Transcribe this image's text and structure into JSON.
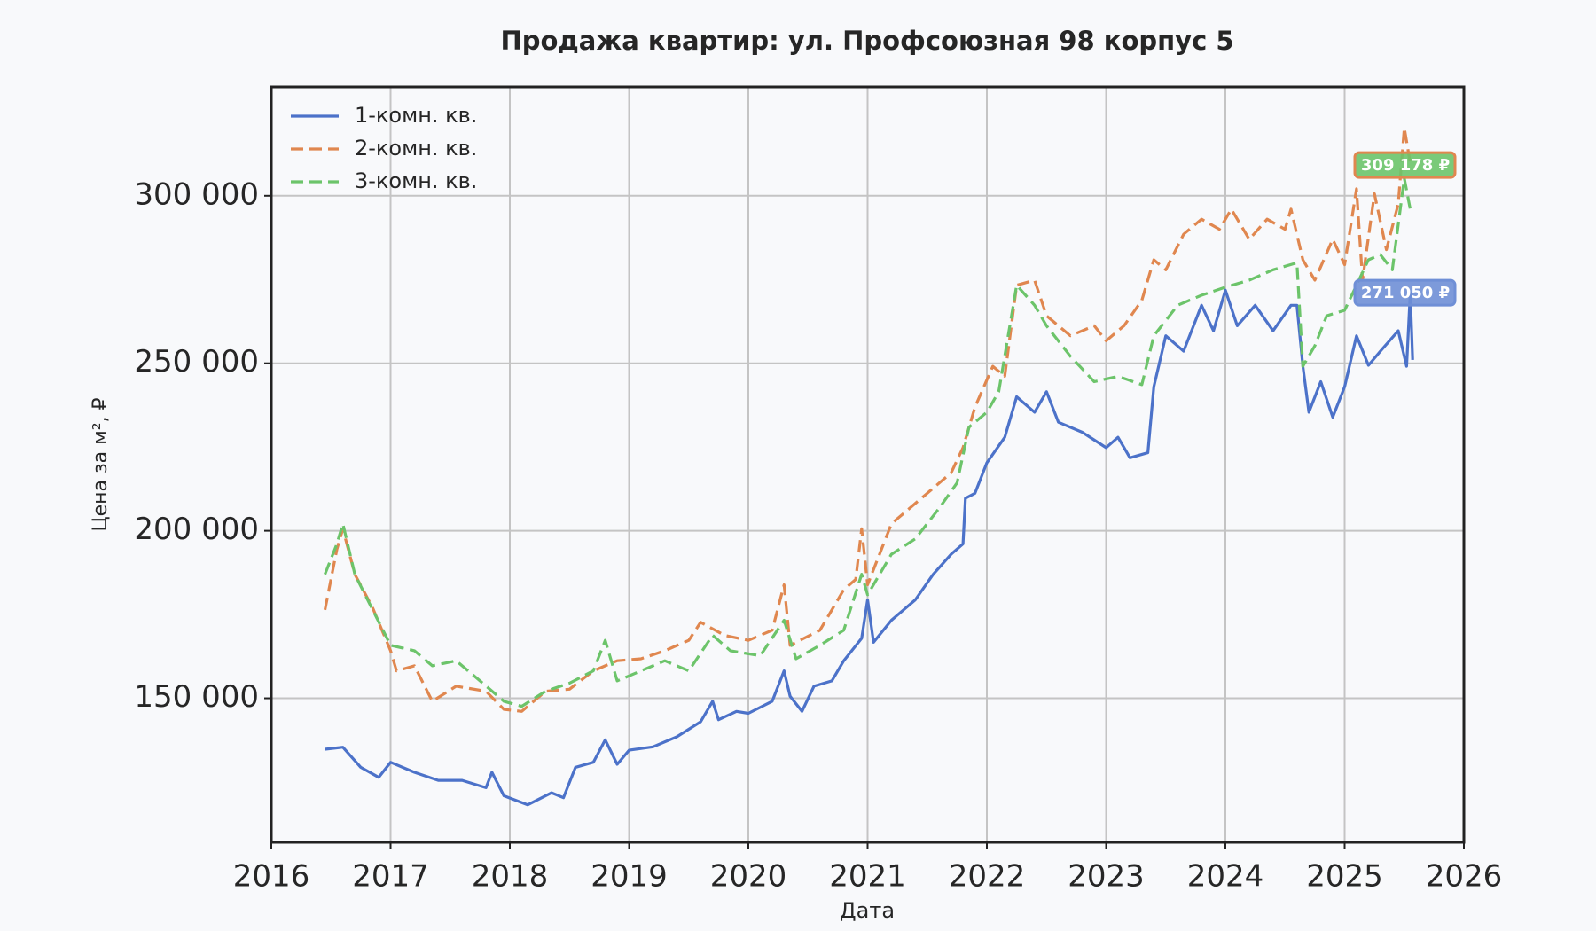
{
  "chart_data": {
    "type": "line",
    "title": "Продажа квартир: ул. Профсоюзная 98 корпус 5",
    "xlabel": "Дата",
    "ylabel": "Цена за м², ₽",
    "xlim": [
      2016,
      2026
    ],
    "xticks": [
      2016,
      2017,
      2018,
      2019,
      2020,
      2021,
      2022,
      2023,
      2024,
      2025,
      2026
    ],
    "ylim": [
      107000,
      332500
    ],
    "yticks": [
      {
        "value": 150000,
        "label": "150 000"
      },
      {
        "value": 200000,
        "label": "200 000"
      },
      {
        "value": 250000,
        "label": "250 000"
      },
      {
        "value": 300000,
        "label": "300 000"
      }
    ],
    "grid": true,
    "legend": "upper left",
    "series": [
      {
        "name": "1-комн. кв.",
        "color": "#4c72c9",
        "dash": "solid",
        "x": [
          2016.45,
          2016.6,
          2016.75,
          2016.9,
          2017.0,
          2017.2,
          2017.4,
          2017.6,
          2017.8,
          2017.85,
          2017.95,
          2018.15,
          2018.35,
          2018.45,
          2018.55,
          2018.7,
          2018.8,
          2018.9,
          2019.0,
          2019.2,
          2019.4,
          2019.6,
          2019.7,
          2019.75,
          2019.9,
          2020.0,
          2020.2,
          2020.3,
          2020.35,
          2020.45,
          2020.55,
          2020.7,
          2020.8,
          2020.95,
          2021.0,
          2021.05,
          2021.2,
          2021.4,
          2021.55,
          2021.7,
          2021.8,
          2021.82,
          2021.9,
          2022.0,
          2022.15,
          2022.25,
          2022.4,
          2022.5,
          2022.6,
          2022.8,
          2023.0,
          2023.1,
          2023.2,
          2023.35,
          2023.4,
          2023.5,
          2023.65,
          2023.8,
          2023.9,
          2024.0,
          2024.1,
          2024.25,
          2024.4,
          2024.55,
          2024.6,
          2024.65,
          2024.7,
          2024.8,
          2024.9,
          2025.0,
          2025.1,
          2025.2,
          2025.3,
          2025.45,
          2025.52,
          2025.55,
          2025.57
        ],
        "values": [
          134800,
          135400,
          129400,
          126400,
          130900,
          127900,
          125500,
          125500,
          123300,
          127900,
          120900,
          118200,
          121800,
          120300,
          129400,
          130900,
          137600,
          130300,
          134500,
          135500,
          138500,
          143000,
          149100,
          143600,
          146100,
          145500,
          149100,
          158200,
          150600,
          146100,
          153600,
          155200,
          161200,
          167900,
          179400,
          166700,
          173300,
          179400,
          187000,
          193000,
          196100,
          209700,
          211200,
          220300,
          227900,
          240000,
          235400,
          241500,
          232400,
          229400,
          224800,
          227900,
          221800,
          223300,
          243000,
          258200,
          253600,
          267300,
          259700,
          271800,
          261200,
          267300,
          259700,
          267300,
          267300,
          249100,
          235400,
          244500,
          233900,
          243000,
          258200,
          249400,
          253600,
          259700,
          249100,
          271000,
          251000
        ]
      },
      {
        "name": "2-комн. кв.",
        "color": "#e0874f",
        "dash": "dashed",
        "x": [
          2016.45,
          2016.55,
          2016.6,
          2016.7,
          2016.85,
          2017.0,
          2017.05,
          2017.2,
          2017.35,
          2017.55,
          2017.8,
          2017.95,
          2018.1,
          2018.3,
          2018.5,
          2018.7,
          2018.9,
          2019.1,
          2019.3,
          2019.5,
          2019.6,
          2019.8,
          2020.0,
          2020.2,
          2020.3,
          2020.35,
          2020.6,
          2020.8,
          2020.9,
          2020.95,
          2021.0,
          2021.2,
          2021.5,
          2021.7,
          2021.8,
          2021.9,
          2022.05,
          2022.15,
          2022.25,
          2022.4,
          2022.5,
          2022.7,
          2022.9,
          2023.0,
          2023.15,
          2023.3,
          2023.4,
          2023.5,
          2023.65,
          2023.8,
          2023.95,
          2024.05,
          2024.2,
          2024.35,
          2024.5,
          2024.55,
          2024.65,
          2024.75,
          2024.9,
          2025.0,
          2025.1,
          2025.15,
          2025.25,
          2025.35,
          2025.45,
          2025.5,
          2025.55
        ],
        "values": [
          176400,
          194500,
          200600,
          187000,
          177000,
          164200,
          158200,
          159700,
          149100,
          153600,
          152100,
          146700,
          146100,
          152100,
          152700,
          158200,
          161200,
          161800,
          164200,
          167300,
          172700,
          168800,
          167300,
          170300,
          183900,
          165800,
          170300,
          182400,
          185500,
          200600,
          183900,
          202100,
          211200,
          217300,
          224800,
          236900,
          249100,
          246100,
          273300,
          274800,
          264200,
          258200,
          261200,
          256700,
          261200,
          268800,
          280900,
          277900,
          288500,
          293000,
          290000,
          296000,
          287000,
          293000,
          290000,
          296000,
          280900,
          274800,
          287000,
          279400,
          302100,
          274800,
          300600,
          283900,
          297600,
          320300,
          309700
        ]
      },
      {
        "name": "3-комн. кв.",
        "color": "#6cc46a",
        "dash": "dashed",
        "x": [
          2016.45,
          2016.55,
          2016.6,
          2016.7,
          2016.85,
          2017.0,
          2017.2,
          2017.35,
          2017.55,
          2017.75,
          2017.95,
          2018.1,
          2018.3,
          2018.5,
          2018.7,
          2018.8,
          2018.9,
          2019.1,
          2019.3,
          2019.5,
          2019.7,
          2019.85,
          2020.1,
          2020.3,
          2020.4,
          2020.6,
          2020.8,
          2020.95,
          2021.0,
          2021.2,
          2021.4,
          2021.6,
          2021.75,
          2021.85,
          2022.0,
          2022.1,
          2022.25,
          2022.4,
          2022.5,
          2022.7,
          2022.9,
          2023.1,
          2023.3,
          2023.4,
          2023.6,
          2023.8,
          2024.0,
          2024.2,
          2024.4,
          2024.6,
          2024.65,
          2024.75,
          2024.85,
          2025.0,
          2025.1,
          2025.2,
          2025.3,
          2025.4,
          2025.5,
          2025.55
        ],
        "values": [
          187000,
          196100,
          202100,
          187000,
          176400,
          165800,
          164200,
          159700,
          161200,
          155200,
          149100,
          147600,
          152100,
          154500,
          158200,
          167300,
          155200,
          158200,
          161200,
          158200,
          168800,
          164200,
          162700,
          173300,
          161800,
          165800,
          170300,
          187000,
          180900,
          193000,
          197600,
          206700,
          214300,
          230900,
          235400,
          241500,
          273300,
          267300,
          261200,
          252100,
          244500,
          246100,
          243600,
          258200,
          267300,
          270300,
          272700,
          274800,
          277900,
          280000,
          249100,
          255200,
          264200,
          265800,
          273300,
          280900,
          282400,
          277900,
          305200,
          296000
        ]
      }
    ],
    "annotations": [
      {
        "label": "309 178 ₽",
        "value": 309178,
        "color": "#6cc46a",
        "edgecolor": "#e0874f"
      },
      {
        "label": "271 050 ₽",
        "value": 271050,
        "color": "#6f8fd6",
        "edgecolor": "#6f8fd6"
      }
    ]
  }
}
